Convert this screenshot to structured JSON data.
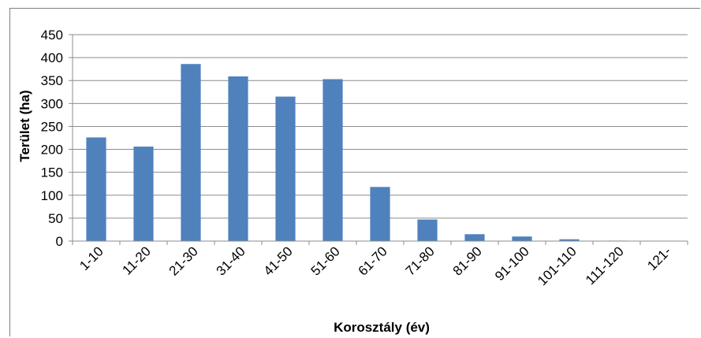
{
  "chart_data": {
    "type": "bar",
    "title": "",
    "xlabel": "Korosztály (év)",
    "ylabel": "Terület (ha)",
    "ylim": [
      0,
      450
    ],
    "yticks": [
      0,
      50,
      100,
      150,
      200,
      250,
      300,
      350,
      400,
      450
    ],
    "grid": true,
    "legend": "none",
    "bar_color": "#4f81bd",
    "categories": [
      "1-10",
      "11-20",
      "21-30",
      "31-40",
      "41-50",
      "51-60",
      "61-70",
      "71-80",
      "81-90",
      "91-100",
      "101-110",
      "111-120",
      "121-"
    ],
    "values": [
      226,
      206,
      386,
      359,
      315,
      353,
      118,
      47,
      15,
      10,
      4,
      1,
      0
    ]
  }
}
